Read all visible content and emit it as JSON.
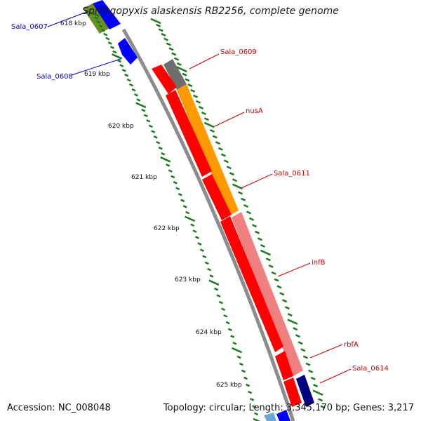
{
  "title": "Sphingopyxis alaskensis RB2256, complete genome",
  "footer": {
    "accession": "Accession: NC_008048",
    "summary": "Topology: circular; Length: 3,345,170 bp; Genes: 3,217"
  },
  "ticks": [
    {
      "label": "618 kbp"
    },
    {
      "label": "619 kbp"
    },
    {
      "label": "620 kbp"
    },
    {
      "label": "621 kbp"
    },
    {
      "label": "622 kbp"
    },
    {
      "label": "623 kbp"
    },
    {
      "label": "624 kbp"
    },
    {
      "label": "625 kbp"
    }
  ],
  "gene_labels": [
    {
      "label": "Sala_0607",
      "color": "#0000cc"
    },
    {
      "label": "Sala_0608",
      "color": "#0000cc"
    },
    {
      "label": "Sala_0609",
      "color": "#cc0000"
    },
    {
      "label": "nusA",
      "color": "#cc0000"
    },
    {
      "label": "Sala_0611",
      "color": "#cc0000"
    },
    {
      "label": "infB",
      "color": "#cc0000"
    },
    {
      "label": "rbfA",
      "color": "#cc0000"
    },
    {
      "label": "Sala_0614",
      "color": "#cc0000"
    }
  ],
  "colors": {
    "backbone": "#8c8c8c",
    "tick": "#1a7a1a",
    "cds_red": "#ff0000",
    "orange": "#ff9900",
    "pink": "#f08080",
    "gray_gene": "#6e6e6e",
    "blue": "#0000ff",
    "navy": "#000080",
    "olive": "#6b8e23"
  }
}
